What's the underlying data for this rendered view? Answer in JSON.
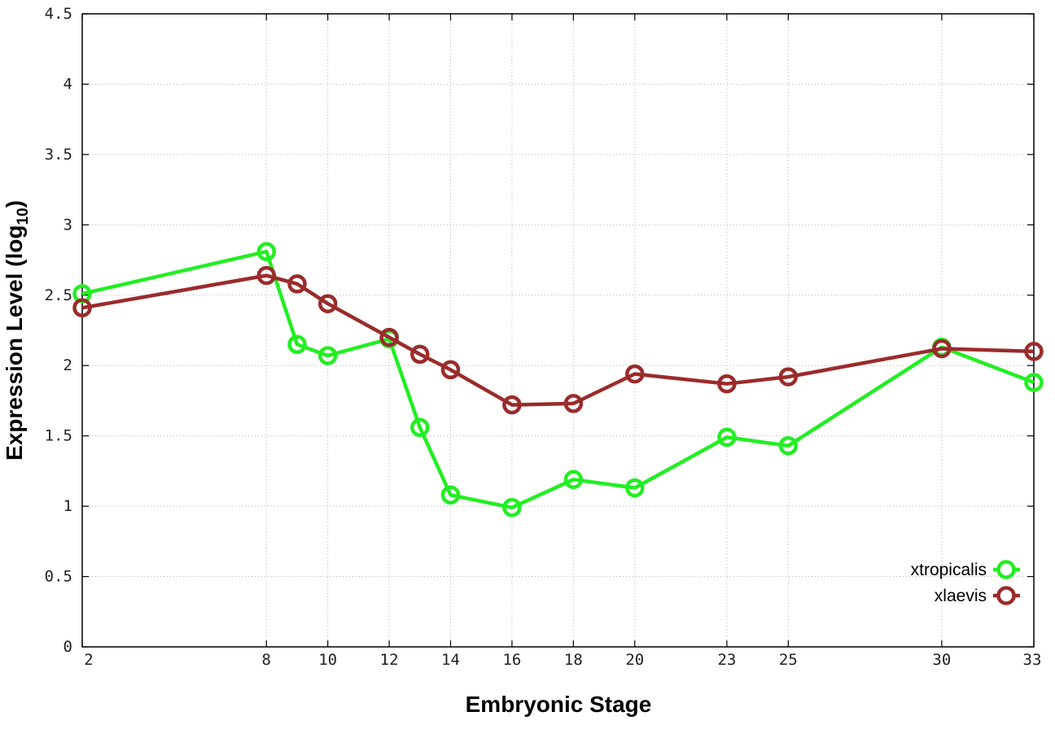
{
  "chart_data": {
    "type": "line",
    "title": "",
    "xlabel": "Embryonic Stage",
    "ylabel_main": "Expression Level (log",
    "ylabel_sub": "10",
    "ylabel_close": ")",
    "xlim": [
      2,
      33
    ],
    "ylim": [
      0,
      4.5
    ],
    "x_ticks": [
      2,
      8,
      10,
      12,
      14,
      16,
      18,
      20,
      23,
      25,
      30,
      33
    ],
    "x_tick_labels": [
      "2",
      "8",
      "10",
      "12",
      "14",
      "16",
      "18",
      "20",
      "23",
      "25",
      "30",
      "33"
    ],
    "y_ticks": [
      0,
      0.5,
      1,
      1.5,
      2,
      2.5,
      3,
      3.5,
      4,
      4.5
    ],
    "y_tick_labels": [
      "0",
      "0.5",
      "1",
      "1.5",
      "2",
      "2.5",
      "3",
      "3.5",
      "4",
      "4.5"
    ],
    "x_tick_positions": [
      2,
      8,
      10,
      12,
      14,
      16,
      18,
      20,
      23,
      25,
      30,
      33
    ],
    "x_points": [
      2,
      8,
      9,
      10,
      12,
      13,
      14,
      16,
      18,
      20,
      23,
      25,
      30,
      33
    ],
    "grid": true,
    "legend_position": "bottom-right",
    "series": [
      {
        "name": "xtropicalis",
        "color": "#22ee22",
        "values": [
          2.51,
          2.81,
          2.15,
          2.07,
          2.19,
          1.56,
          1.08,
          0.99,
          1.19,
          1.13,
          1.49,
          1.43,
          2.13,
          1.88
        ]
      },
      {
        "name": "xlaevis",
        "color": "#9b2b2b",
        "values": [
          2.41,
          2.64,
          2.58,
          2.44,
          2.2,
          2.08,
          1.97,
          1.72,
          1.73,
          1.94,
          1.87,
          1.92,
          2.12,
          2.1
        ]
      }
    ]
  }
}
